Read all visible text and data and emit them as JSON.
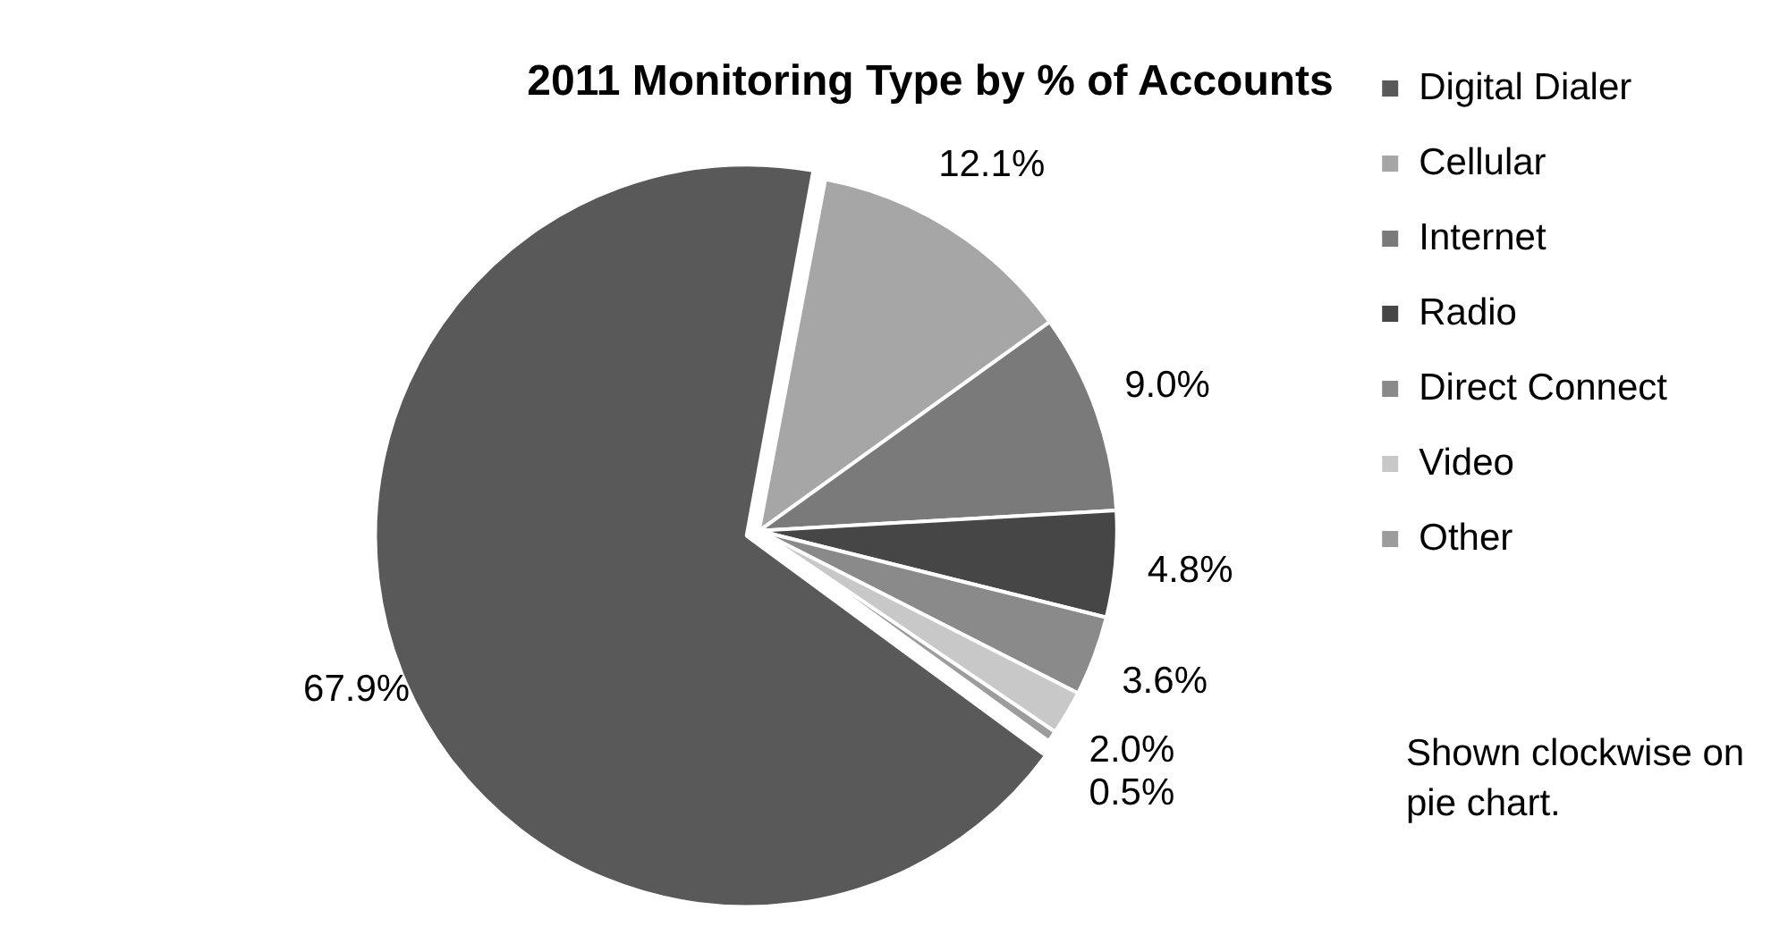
{
  "chart_data": {
    "type": "pie",
    "title": "2011 Monitoring Type by % of Accounts",
    "categories": [
      "Digital Dialer",
      "Cellular",
      "Internet",
      "Radio",
      "Direct Connect",
      "Video",
      "Other"
    ],
    "values": [
      67.9,
      12.1,
      9.0,
      4.8,
      3.6,
      2.0,
      0.5
    ],
    "colors": [
      "#595959",
      "#a6a6a6",
      "#7a7a7a",
      "#464646",
      "#8a8a8a",
      "#c8c8c8",
      "#9c9c9c"
    ],
    "value_labels": [
      "67.9%",
      "12.1%",
      "9.0%",
      "4.8%",
      "3.6%",
      "2.0%",
      "0.5%"
    ],
    "legend": "right",
    "annotations": [
      "Shown clockwise on pie chart."
    ]
  }
}
